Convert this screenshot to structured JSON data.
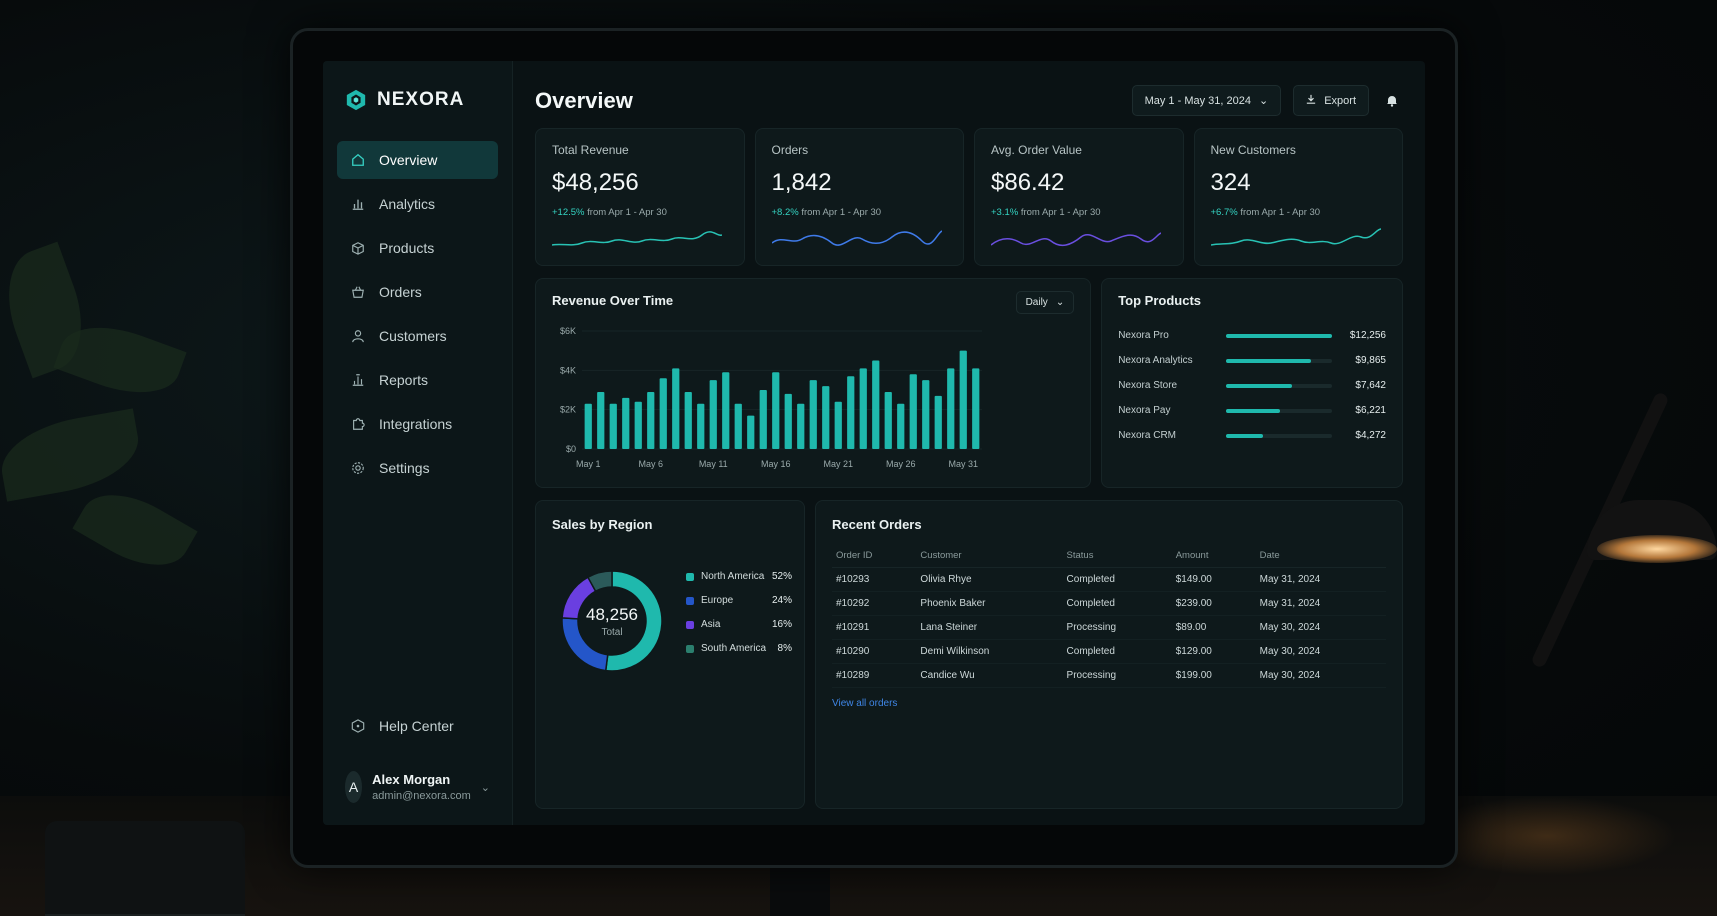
{
  "brand": {
    "name": "NEXORA",
    "logo_icon": "hexagon-logo-icon",
    "accent": "#1fb9ad"
  },
  "sidebar": {
    "items": [
      {
        "label": "Overview",
        "icon": "home-icon",
        "active": true
      },
      {
        "label": "Analytics",
        "icon": "bar-chart-icon",
        "active": false
      },
      {
        "label": "Products",
        "icon": "box-icon",
        "active": false
      },
      {
        "label": "Orders",
        "icon": "basket-icon",
        "active": false
      },
      {
        "label": "Customers",
        "icon": "user-icon",
        "active": false
      },
      {
        "label": "Reports",
        "icon": "report-icon",
        "active": false
      },
      {
        "label": "Integrations",
        "icon": "puzzle-icon",
        "active": false
      },
      {
        "label": "Settings",
        "icon": "gear-icon",
        "active": false
      }
    ],
    "help_label": "Help Center",
    "user": {
      "initial": "A",
      "name": "Alex Morgan",
      "email": "admin@nexora.com"
    }
  },
  "header": {
    "title": "Overview",
    "date_range": "May 1 - May 31, 2024",
    "export_label": "Export"
  },
  "kpis": [
    {
      "label": "Total Revenue",
      "value": "$48,256",
      "delta": "+12.5%",
      "compare": "from Apr 1 - Apr 30",
      "color": "#28c2b4"
    },
    {
      "label": "Orders",
      "value": "1,842",
      "delta": "+8.2%",
      "compare": "from Apr 1 - Apr 30",
      "color": "#3f7bea"
    },
    {
      "label": "Avg. Order Value",
      "value": "$86.42",
      "delta": "+3.1%",
      "compare": "from Apr 1 - Apr 30",
      "color": "#6a4fe0"
    },
    {
      "label": "New Customers",
      "value": "324",
      "delta": "+6.7%",
      "compare": "from Apr 1 - Apr 30",
      "color": "#28c2b4"
    }
  ],
  "revenue_chart": {
    "title": "Revenue Over Time",
    "period_label": "Daily"
  },
  "chart_data": [
    {
      "type": "bar",
      "ylim": [
        0,
        6000
      ],
      "yticks": [
        "$0",
        "$2K",
        "$4K",
        "$6K"
      ],
      "xticks": [
        "May 1",
        "May 6",
        "May 11",
        "May 16",
        "May 21",
        "May 26",
        "May 31"
      ],
      "values": [
        2300,
        2900,
        2300,
        2600,
        2400,
        2900,
        3600,
        4100,
        2900,
        2300,
        3500,
        3900,
        2300,
        1700,
        3000,
        3900,
        2800,
        2300,
        3500,
        3200,
        2400,
        3700,
        4100,
        4500,
        2900,
        2300,
        3800,
        3500,
        2700,
        4100,
        5000,
        4100
      ],
      "color": "#1fb9ad"
    },
    {
      "type": "pie",
      "labels": [
        "North America",
        "Europe",
        "Asia",
        "South America"
      ],
      "values": [
        52,
        24,
        16,
        8
      ],
      "colors": [
        "#1fb9ad",
        "#2456c9",
        "#6a3fe0",
        "#2b5a5a"
      ]
    }
  ],
  "top_products": {
    "title": "Top Products",
    "items": [
      {
        "name": "Nexora Pro",
        "value": "$12,256",
        "share": 1.0
      },
      {
        "name": "Nexora Analytics",
        "value": "$9,865",
        "share": 0.8
      },
      {
        "name": "Nexora Store",
        "value": "$7,642",
        "share": 0.62
      },
      {
        "name": "Nexora Pay",
        "value": "$6,221",
        "share": 0.51
      },
      {
        "name": "Nexora CRM",
        "value": "$4,272",
        "share": 0.35
      }
    ]
  },
  "region": {
    "title": "Sales by Region",
    "total": "48,256",
    "total_label": "Total",
    "items": [
      {
        "name": "North America",
        "pct": "52%",
        "color": "#1fb9ad"
      },
      {
        "name": "Europe",
        "pct": "24%",
        "color": "#2456c9"
      },
      {
        "name": "Asia",
        "pct": "16%",
        "color": "#6a3fe0"
      },
      {
        "name": "South America",
        "pct": "8%",
        "color": "#2b7f6e"
      }
    ]
  },
  "orders": {
    "title": "Recent Orders",
    "columns": [
      "Order ID",
      "Customer",
      "Status",
      "Amount",
      "Date"
    ],
    "rows": [
      {
        "id": "#10293",
        "customer": "Olivia Rhye",
        "status": "Completed",
        "amount": "$149.00",
        "date": "May 31, 2024"
      },
      {
        "id": "#10292",
        "customer": "Phoenix Baker",
        "status": "Completed",
        "amount": "$239.00",
        "date": "May 31, 2024"
      },
      {
        "id": "#10291",
        "customer": "Lana Steiner",
        "status": "Processing",
        "amount": "$89.00",
        "date": "May 30, 2024"
      },
      {
        "id": "#10290",
        "customer": "Demi Wilkinson",
        "status": "Completed",
        "amount": "$129.00",
        "date": "May 30, 2024"
      },
      {
        "id": "#10289",
        "customer": "Candice Wu",
        "status": "Processing",
        "amount": "$199.00",
        "date": "May 30, 2024"
      }
    ],
    "view_all_label": "View all orders"
  }
}
